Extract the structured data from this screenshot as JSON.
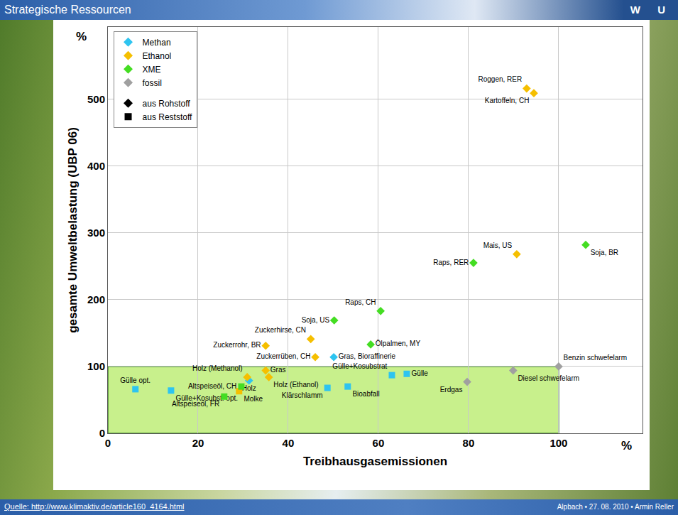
{
  "slide": {
    "title": "Strategische Ressourcen",
    "logo": "W U",
    "source": "Quelle: http://www.klimaktiv.de/article160_4164.html",
    "footer": "Alpbach • 27. 08. 2010 • Armin Reller"
  },
  "chart_data": {
    "type": "scatter",
    "x_label": "Treibhausgasemissionen",
    "y_label": "gesamte Umweltbelastung (UBP 06)",
    "x_unit": "%",
    "y_unit": "%",
    "xlim": [
      0,
      118.6
    ],
    "ylim": [
      0,
      608
    ],
    "xticks": [
      0,
      20,
      40,
      60,
      80,
      100
    ],
    "yticks": [
      0,
      100,
      200,
      300,
      400,
      500
    ],
    "grid": true,
    "legend": "top-left",
    "shaded_region": {
      "x": [
        0,
        100
      ],
      "y": [
        0,
        100
      ],
      "color": "#c8f08c"
    },
    "series": [
      {
        "name": "Methan",
        "color": "#2ec4f0",
        "marker": "diamond",
        "labels": [
          "Gülle opt.",
          "Gülle+Kosubst. opt.",
          "Holz",
          "Gras, Bioraffinerie",
          "Klärschlamm",
          "Bioabfall",
          "Gülle+Kosubstrat",
          "Gülle"
        ],
        "x": [
          6.1,
          14,
          31.3,
          50.1,
          48.7,
          53.2,
          63,
          66.3
        ],
        "values": [
          66,
          64,
          79,
          114,
          68,
          70,
          87,
          89
        ],
        "markers": [
          "square",
          "square",
          "diamond",
          "diamond",
          "square",
          "square",
          "square",
          "square"
        ]
      },
      {
        "name": "Ethanol",
        "color": "#f5bf00",
        "marker": "diamond",
        "labels": [
          "Roggen, RER",
          "Kartoffeln, CH",
          "Mais, US",
          "Zuckerhirse, CN",
          "Zuckerrohr, BR",
          "Zuckerrüben, CH",
          "Holz (Methanol)",
          "Gras",
          "Holz (Ethanol)",
          "Molke"
        ],
        "x": [
          92.9,
          94.5,
          90.7,
          45,
          35,
          46,
          30.9,
          35,
          35.7,
          29.1
        ],
        "values": [
          516,
          509,
          268,
          141,
          131,
          114,
          84,
          94,
          84,
          63
        ],
        "markers": [
          "diamond",
          "diamond",
          "diamond",
          "diamond",
          "diamond",
          "diamond",
          "diamond",
          "diamond",
          "diamond",
          "square"
        ]
      },
      {
        "name": "XME",
        "color": "#44dd22",
        "marker": "diamond",
        "labels": [
          "Soja, BR",
          "Raps, RER",
          "Raps, CH",
          "Soja, US",
          "Ölpalmen, MY",
          "Altspeiseöl, CH",
          "Altspeiseöl, FR"
        ],
        "x": [
          106,
          81.1,
          60.5,
          50.2,
          58.3,
          29.6,
          25.8
        ],
        "values": [
          282,
          255,
          183,
          169,
          133,
          70,
          55
        ],
        "markers": [
          "diamond",
          "diamond",
          "diamond",
          "diamond",
          "diamond",
          "square",
          "square"
        ]
      },
      {
        "name": "fossil",
        "color": "#a0a0a0",
        "marker": "diamond",
        "labels": [
          "Erdgas",
          "Diesel schwefelarm",
          "Benzin schwefelarm"
        ],
        "x": [
          79.7,
          89.9,
          100
        ],
        "values": [
          77,
          94,
          100
        ],
        "markers": [
          "diamond",
          "diamond",
          "diamond"
        ]
      }
    ],
    "marker_legend": [
      {
        "name": "aus Rohstoff",
        "marker": "diamond"
      },
      {
        "name": "aus Reststoff",
        "marker": "square"
      }
    ]
  }
}
